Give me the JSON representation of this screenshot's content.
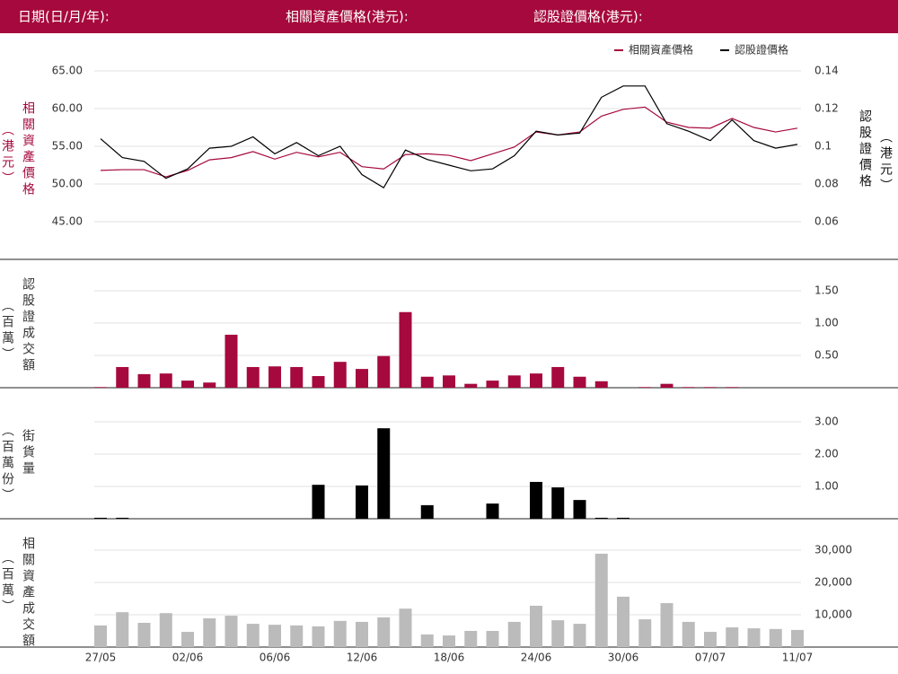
{
  "header": {
    "date_label": "日期(日/月/年):",
    "underlying_label": "相關資產價格(港元):",
    "warrant_label": "認股證價格(港元):"
  },
  "chart_data": [
    {
      "type": "line",
      "y_label": "相關資產價格",
      "y_label_unit": "（港元）",
      "y2_label": "認股證價格",
      "y2_label_unit": "（港元）",
      "ylim": [
        45,
        65
      ],
      "yticks": [
        {
          "value": 45,
          "label": "45.00"
        },
        {
          "value": 50,
          "label": "50.00"
        },
        {
          "value": 55,
          "label": "55.00"
        },
        {
          "value": 60,
          "label": "60.00"
        },
        {
          "value": 65,
          "label": "65.00"
        }
      ],
      "y2lim": [
        0.06,
        0.14
      ],
      "y2ticks": [
        0.06,
        0.08,
        0.1,
        0.12,
        0.14
      ],
      "grid": true,
      "legend": "top-right",
      "series": [
        {
          "name": "相關資產價格",
          "color": "#a6093d",
          "values": [
            51.8,
            51.9,
            51.9,
            50.95,
            51.8,
            53.2,
            53.5,
            54.3,
            53.3,
            54.2,
            53.6,
            54.2,
            52.3,
            52.0,
            53.9,
            54.0,
            53.8,
            53.1,
            54.0,
            54.9,
            56.9,
            56.5,
            56.9,
            59.0,
            59.9,
            60.2,
            58.2,
            57.5,
            57.4,
            58.7,
            57.5,
            56.9,
            57.4
          ]
        },
        {
          "name": "認股證價格",
          "color": "#000000",
          "axis": "y2",
          "values": [
            0.104,
            0.094,
            0.092,
            0.083,
            0.088,
            0.099,
            0.1,
            0.105,
            0.096,
            0.102,
            0.095,
            0.1,
            0.085,
            0.078,
            0.098,
            0.093,
            0.09,
            0.087,
            0.088,
            0.095,
            0.108,
            0.106,
            0.107,
            0.126,
            0.132,
            0.132,
            0.112,
            0.108,
            0.103,
            0.114,
            0.103,
            0.099,
            0.101
          ]
        }
      ]
    },
    {
      "type": "bar",
      "color": "#a6093d",
      "y_label": "認股證成交額",
      "y_label_unit": "（百萬）",
      "ylim": [
        0,
        1.5
      ],
      "yticks": [
        {
          "value": 0.5,
          "label": "0.50"
        },
        {
          "value": 1,
          "label": "1.00"
        },
        {
          "value": 1.5,
          "label": "1.50"
        }
      ],
      "grid": true,
      "values": [
        0.01,
        0.32,
        0.21,
        0.22,
        0.11,
        0.08,
        0.82,
        0.32,
        0.33,
        0.32,
        0.18,
        0.4,
        0.29,
        0.49,
        1.17,
        0.17,
        0.19,
        0.06,
        0.11,
        0.19,
        0.22,
        0.32,
        0.17,
        0.1,
        0,
        0.01,
        0.06,
        0.01,
        0.01,
        0.01,
        0,
        0,
        0
      ]
    },
    {
      "type": "bar",
      "color": "#000000",
      "y_label": "街貨量",
      "y_label_unit": "（百萬份）",
      "ylim": [
        0,
        3
      ],
      "yticks": [
        {
          "value": 1,
          "label": "1.00"
        },
        {
          "value": 2,
          "label": "2.00"
        },
        {
          "value": 3,
          "label": "3.00"
        }
      ],
      "grid": true,
      "values": [
        0.03,
        0.03,
        0,
        0,
        0,
        0,
        0,
        0,
        0,
        0,
        1.05,
        0,
        1.03,
        2.8,
        0,
        0.42,
        0,
        0,
        0.47,
        0,
        1.14,
        0.97,
        0.58,
        0.03,
        0.03,
        0,
        0,
        0,
        0,
        0,
        0,
        0,
        0
      ]
    },
    {
      "type": "bar",
      "color": "#bbbbbb",
      "y_label": "相關資產成交額",
      "y_label_unit": "（百萬）",
      "ylim": [
        0,
        30000
      ],
      "yticks": [
        {
          "value": 10000,
          "label": "10,000"
        },
        {
          "value": 20000,
          "label": "20,000"
        },
        {
          "value": 30000,
          "label": "30,000"
        }
      ],
      "grid": true,
      "categories": [
        "27/05",
        null,
        null,
        null,
        "02/06",
        null,
        null,
        null,
        "06/06",
        null,
        null,
        null,
        "12/06",
        null,
        null,
        null,
        "18/06",
        null,
        null,
        null,
        "24/06",
        null,
        null,
        null,
        "30/06",
        null,
        null,
        null,
        "07/07",
        null,
        null,
        null,
        "11/07"
      ],
      "values": [
        6700,
        10800,
        7500,
        10500,
        4700,
        8900,
        9700,
        7200,
        6900,
        6700,
        6400,
        8100,
        7800,
        9200,
        11900,
        3900,
        3600,
        5000,
        5000,
        7800,
        12800,
        8300,
        7200,
        28900,
        15600,
        8600,
        13600,
        7800,
        4700,
        6100,
        5800,
        5600,
        5300
      ]
    }
  ]
}
